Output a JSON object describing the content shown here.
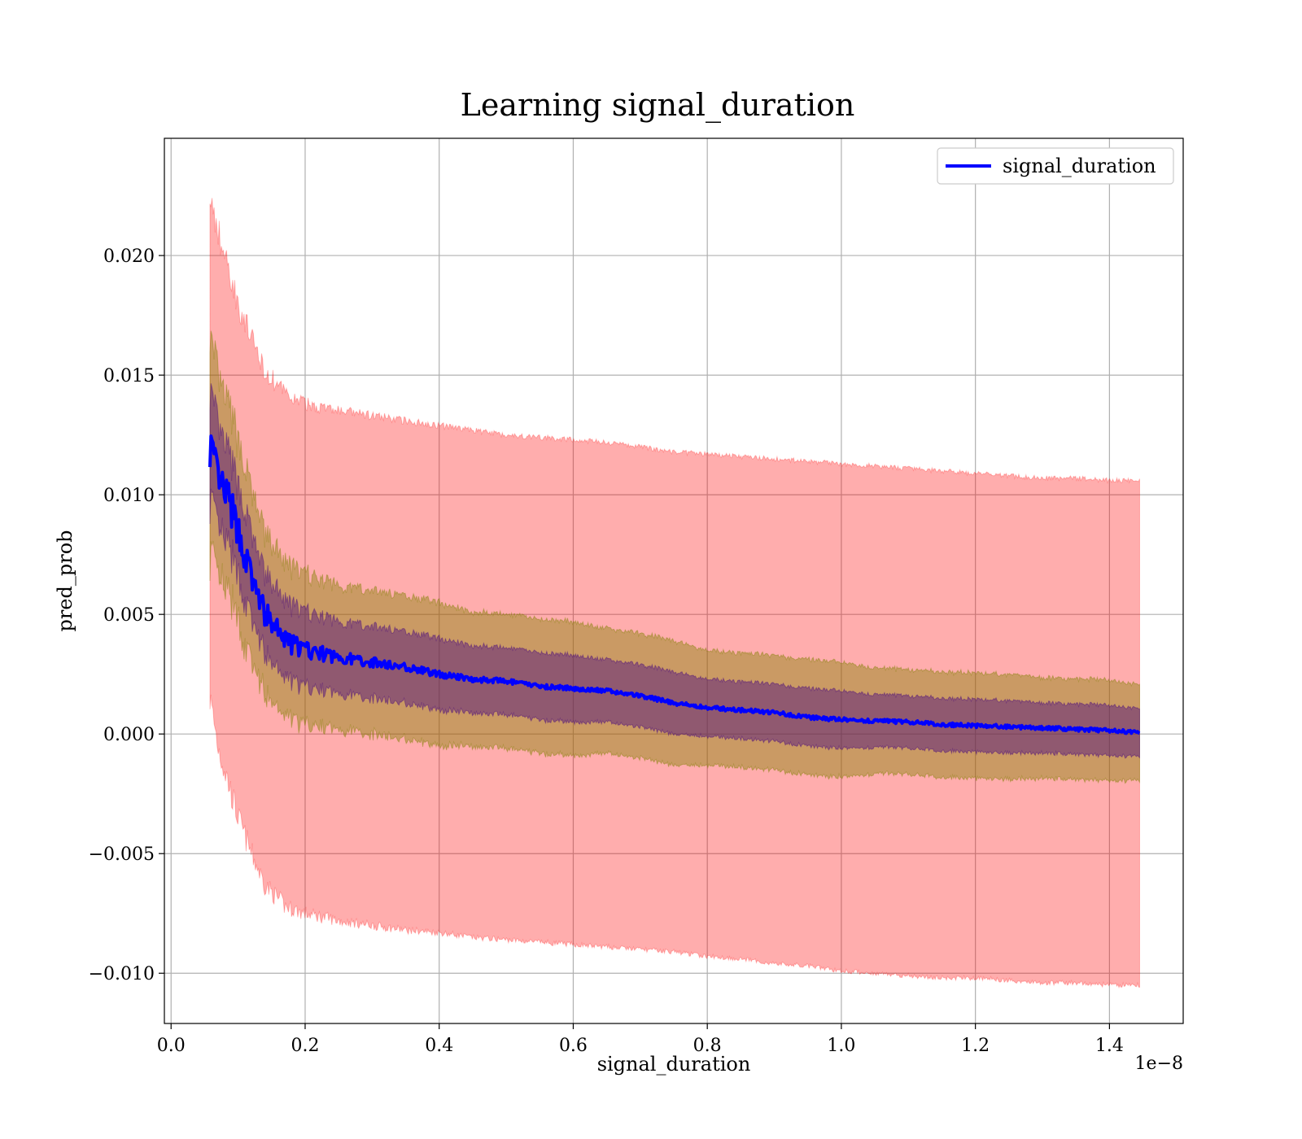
{
  "chart_data": {
    "type": "line",
    "title": "Learning signal_duration",
    "xlabel": "signal_duration",
    "ylabel": "pred_prob",
    "x_offset_label": "1e−8",
    "xlim": [
      -0.01,
      1.51
    ],
    "ylim": [
      -0.0121,
      0.0249
    ],
    "x_ticks": [
      0.0,
      0.2,
      0.4,
      0.6,
      0.8,
      1.0,
      1.2,
      1.4
    ],
    "x_tick_labels": [
      "0.0",
      "0.2",
      "0.4",
      "0.6",
      "0.8",
      "1.0",
      "1.2",
      "1.4"
    ],
    "y_ticks": [
      -0.01,
      -0.005,
      0.0,
      0.005,
      0.01,
      0.015,
      0.02
    ],
    "y_tick_labels": [
      "−0.010",
      "−0.005",
      "0.000",
      "0.005",
      "0.010",
      "0.015",
      "0.020"
    ],
    "grid": true,
    "legend": {
      "position": "top-right"
    },
    "colors": {
      "line": "#0000ff",
      "band_outer": "#ff0000",
      "band_middle": "#808000",
      "band_inner": "#400080"
    },
    "series": [
      {
        "name": "signal_duration",
        "x": [
          0.058,
          0.07,
          0.085,
          0.1,
          0.12,
          0.14,
          0.17,
          0.2,
          0.25,
          0.3,
          0.35,
          0.4,
          0.45,
          0.5,
          0.55,
          0.6,
          0.65,
          0.7,
          0.75,
          0.8,
          0.85,
          0.9,
          0.95,
          1.0,
          1.05,
          1.1,
          1.15,
          1.2,
          1.25,
          1.3,
          1.35,
          1.4,
          1.445
        ],
        "y": [
          0.0122,
          0.0105,
          0.0098,
          0.0085,
          0.0065,
          0.005,
          0.0039,
          0.0035,
          0.0032,
          0.003,
          0.0028,
          0.0025,
          0.0023,
          0.0022,
          0.002,
          0.0019,
          0.0018,
          0.0016,
          0.0013,
          0.0011,
          0.001,
          0.0009,
          0.0007,
          0.0006,
          0.00055,
          0.0005,
          0.0004,
          0.00035,
          0.0003,
          0.00025,
          0.0002,
          0.00015,
          5e-05
        ],
        "std": [
          0.0022,
          0.0021,
          0.002,
          0.0019,
          0.0018,
          0.0017,
          0.0016,
          0.0016,
          0.0015,
          0.0015,
          0.0015,
          0.0015,
          0.0014,
          0.0014,
          0.0014,
          0.0014,
          0.0013,
          0.0013,
          0.0013,
          0.0012,
          0.0012,
          0.0012,
          0.0012,
          0.0012,
          0.0011,
          0.0011,
          0.0011,
          0.0011,
          0.0011,
          0.00105,
          0.00105,
          0.00105,
          0.001
        ]
      }
    ],
    "bands": [
      {
        "name": "3-sigma",
        "sigma": 3,
        "color_key": "band_outer",
        "opacity": 0.32
      },
      {
        "name": "2-sigma",
        "sigma": 2,
        "color_key": "band_middle",
        "opacity": 0.42
      },
      {
        "name": "1-sigma",
        "sigma": 1,
        "color_key": "band_inner",
        "opacity": 0.42
      }
    ],
    "outer_band_override": {
      "upper": [
        0.0225,
        0.021,
        0.0195,
        0.018,
        0.0165,
        0.0152,
        0.0142,
        0.0138,
        0.0135,
        0.0133,
        0.0131,
        0.0129,
        0.0127,
        0.0125,
        0.0124,
        0.0123,
        0.0122,
        0.012,
        0.0118,
        0.0117,
        0.0116,
        0.0115,
        0.0114,
        0.0113,
        0.0112,
        0.0111,
        0.011,
        0.0109,
        0.0108,
        0.0107,
        0.0107,
        0.0106,
        0.0106
      ],
      "lower": [
        0.0015,
        -0.0005,
        -0.002,
        -0.0035,
        -0.005,
        -0.0063,
        -0.0072,
        -0.0075,
        -0.0078,
        -0.008,
        -0.0082,
        -0.0083,
        -0.0085,
        -0.0086,
        -0.0087,
        -0.0088,
        -0.0089,
        -0.009,
        -0.0091,
        -0.0093,
        -0.0094,
        -0.0096,
        -0.0097,
        -0.0099,
        -0.01,
        -0.0101,
        -0.0102,
        -0.0102,
        -0.0103,
        -0.0104,
        -0.0104,
        -0.0105,
        -0.0105
      ]
    }
  }
}
